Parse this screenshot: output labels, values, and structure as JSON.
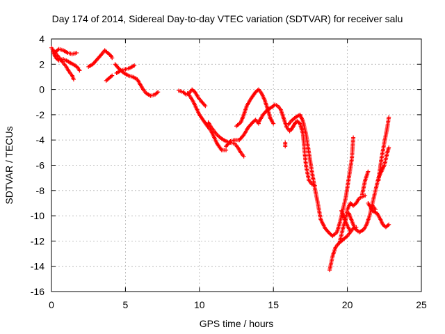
{
  "chart_data": {
    "type": "scatter",
    "title": "Day 174 of 2014, Sidereal Day-to-day VTEC variation (SDTVAR) for receiver salu",
    "xlabel": "GPS time / hours",
    "ylabel": "SDTVAR / TECUs",
    "xlim": [
      0,
      25
    ],
    "ylim": [
      -16,
      4
    ],
    "xticks": [
      0,
      5,
      10,
      15,
      20,
      25
    ],
    "yticks": [
      -16,
      -14,
      -12,
      -10,
      -8,
      -6,
      -4,
      -2,
      0,
      2,
      4
    ],
    "grid": true,
    "marker": "+",
    "color": "#ff0000",
    "series": [
      {
        "tracks": [
          [
            [
              0.0,
              3.3
            ],
            [
              0.2,
              3.0
            ],
            [
              0.4,
              2.7
            ],
            [
              0.6,
              2.4
            ],
            [
              0.8,
              2.1
            ],
            [
              1.0,
              1.8
            ],
            [
              1.2,
              1.4
            ],
            [
              1.4,
              1.1
            ],
            [
              1.5,
              0.8
            ]
          ],
          [
            [
              0.1,
              3.0
            ],
            [
              0.3,
              2.5
            ],
            [
              0.5,
              2.3
            ],
            [
              0.8,
              2.4
            ],
            [
              1.0,
              2.3
            ],
            [
              1.3,
              2.1
            ],
            [
              1.6,
              1.9
            ],
            [
              1.8,
              1.7
            ],
            [
              1.9,
              1.5
            ]
          ],
          [
            [
              0.3,
              3.0
            ],
            [
              0.5,
              3.2
            ],
            [
              0.8,
              3.1
            ],
            [
              1.1,
              2.9
            ],
            [
              1.4,
              2.8
            ],
            [
              1.7,
              2.9
            ]
          ],
          [
            [
              2.5,
              1.8
            ],
            [
              2.8,
              2.0
            ],
            [
              3.1,
              2.4
            ],
            [
              3.4,
              2.8
            ],
            [
              3.6,
              3.1
            ],
            [
              3.8,
              2.9
            ],
            [
              4.0,
              2.7
            ],
            [
              4.1,
              2.5
            ]
          ],
          [
            [
              3.7,
              0.7
            ],
            [
              3.9,
              0.9
            ],
            [
              4.1,
              1.1
            ]
          ],
          [
            [
              4.3,
              2.0
            ],
            [
              4.6,
              1.6
            ],
            [
              4.9,
              1.3
            ],
            [
              5.2,
              1.1
            ],
            [
              5.5,
              1.0
            ],
            [
              5.8,
              0.8
            ],
            [
              6.0,
              0.4
            ],
            [
              6.2,
              0.0
            ],
            [
              6.4,
              -0.3
            ],
            [
              6.7,
              -0.5
            ],
            [
              7.0,
              -0.4
            ],
            [
              7.2,
              -0.2
            ]
          ],
          [
            [
              4.4,
              1.3
            ],
            [
              4.7,
              1.5
            ],
            [
              5.0,
              1.6
            ],
            [
              5.3,
              1.7
            ],
            [
              5.6,
              1.9
            ]
          ],
          [
            [
              8.6,
              -0.1
            ],
            [
              8.9,
              -0.2
            ],
            [
              9.1,
              -0.4
            ],
            [
              9.3,
              -0.3
            ],
            [
              9.5,
              0.0
            ],
            [
              9.7,
              -0.2
            ],
            [
              9.9,
              -0.6
            ],
            [
              10.1,
              -0.9
            ],
            [
              10.4,
              -1.3
            ]
          ],
          [
            [
              9.2,
              -0.3
            ],
            [
              9.4,
              -0.6
            ],
            [
              9.6,
              -1.0
            ],
            [
              9.8,
              -1.5
            ],
            [
              10.0,
              -2.0
            ],
            [
              10.3,
              -2.5
            ],
            [
              10.6,
              -3.0
            ],
            [
              10.8,
              -3.3
            ],
            [
              11.0,
              -3.8
            ],
            [
              11.2,
              -4.3
            ],
            [
              11.5,
              -4.8
            ],
            [
              11.8,
              -4.8
            ]
          ],
          [
            [
              10.6,
              -2.6
            ],
            [
              10.8,
              -3.0
            ],
            [
              11.0,
              -3.3
            ],
            [
              11.2,
              -3.6
            ],
            [
              11.5,
              -3.9
            ],
            [
              11.8,
              -4.1
            ],
            [
              12.1,
              -4.2
            ],
            [
              12.4,
              -4.3
            ],
            [
              12.6,
              -4.6
            ],
            [
              12.8,
              -5.0
            ],
            [
              13.0,
              -5.3
            ]
          ],
          [
            [
              11.8,
              -4.5
            ],
            [
              12.1,
              -4.1
            ],
            [
              12.4,
              -4.0
            ],
            [
              12.7,
              -4.0
            ],
            [
              13.0,
              -3.6
            ],
            [
              13.3,
              -3.0
            ],
            [
              13.6,
              -2.6
            ],
            [
              13.8,
              -2.4
            ],
            [
              14.0,
              -2.7
            ]
          ],
          [
            [
              12.5,
              -2.9
            ],
            [
              12.8,
              -2.6
            ],
            [
              13.0,
              -2.0
            ],
            [
              13.2,
              -1.3
            ],
            [
              13.5,
              -0.7
            ],
            [
              13.8,
              -0.2
            ],
            [
              14.0,
              0.0
            ],
            [
              14.2,
              -0.3
            ],
            [
              14.4,
              -0.8
            ],
            [
              14.6,
              -1.5
            ],
            [
              14.8,
              -2.3
            ],
            [
              15.0,
              -2.7
            ]
          ],
          [
            [
              14.0,
              -2.6
            ],
            [
              14.3,
              -2.0
            ],
            [
              14.6,
              -1.6
            ],
            [
              14.9,
              -1.4
            ],
            [
              15.1,
              -1.2
            ],
            [
              15.3,
              -1.3
            ],
            [
              15.5,
              -1.6
            ],
            [
              15.7,
              -2.3
            ],
            [
              15.9,
              -3.0
            ],
            [
              16.1,
              -3.3
            ],
            [
              16.3,
              -3.0
            ],
            [
              16.5,
              -2.6
            ]
          ],
          [
            [
              15.8,
              -4.2
            ],
            [
              15.8,
              -4.5
            ]
          ],
          [
            [
              16.0,
              -2.8
            ],
            [
              16.2,
              -2.5
            ],
            [
              16.5,
              -2.2
            ],
            [
              16.8,
              -2.0
            ],
            [
              17.0,
              -2.5
            ],
            [
              17.2,
              -3.5
            ],
            [
              17.4,
              -5.0
            ],
            [
              17.6,
              -6.5
            ],
            [
              17.8,
              -7.8
            ],
            [
              18.0,
              -9.0
            ],
            [
              18.2,
              -10.3
            ],
            [
              18.5,
              -11.0
            ],
            [
              18.8,
              -11.4
            ],
            [
              19.0,
              -11.6
            ],
            [
              19.3,
              -11.3
            ],
            [
              19.5,
              -10.5
            ],
            [
              19.7,
              -9.5
            ],
            [
              19.9,
              -8.5
            ],
            [
              20.1,
              -7.0
            ],
            [
              20.3,
              -5.5
            ],
            [
              20.4,
              -3.8
            ]
          ],
          [
            [
              16.2,
              -3.2
            ],
            [
              16.4,
              -2.8
            ],
            [
              16.6,
              -2.5
            ],
            [
              16.8,
              -2.7
            ],
            [
              17.0,
              -3.5
            ],
            [
              17.1,
              -4.8
            ],
            [
              17.2,
              -6.0
            ],
            [
              17.4,
              -7.2
            ],
            [
              17.6,
              -7.5
            ],
            [
              17.8,
              -7.6
            ]
          ],
          [
            [
              18.8,
              -14.3
            ],
            [
              19.0,
              -13.2
            ],
            [
              19.2,
              -12.5
            ],
            [
              19.4,
              -12.2
            ],
            [
              19.6,
              -12.0
            ],
            [
              19.8,
              -11.8
            ],
            [
              20.0,
              -11.6
            ],
            [
              20.2,
              -11.3
            ],
            [
              20.4,
              -11.0
            ],
            [
              20.6,
              -10.9
            ]
          ],
          [
            [
              19.5,
              -12.0
            ],
            [
              19.7,
              -11.0
            ],
            [
              19.9,
              -10.2
            ],
            [
              20.0,
              -9.5
            ],
            [
              20.2,
              -9.0
            ],
            [
              20.4,
              -9.2
            ],
            [
              20.6,
              -9.0
            ],
            [
              20.8,
              -8.6
            ],
            [
              21.0,
              -8.5
            ],
            [
              21.2,
              -8.4
            ]
          ],
          [
            [
              19.6,
              -9.6
            ],
            [
              19.8,
              -10.2
            ],
            [
              20.0,
              -10.8
            ],
            [
              20.2,
              -11.2
            ]
          ],
          [
            [
              20.1,
              -9.8
            ],
            [
              20.3,
              -10.4
            ],
            [
              20.5,
              -11.0
            ],
            [
              20.8,
              -11.3
            ],
            [
              21.1,
              -11.1
            ],
            [
              21.3,
              -10.7
            ],
            [
              21.5,
              -10.0
            ],
            [
              21.7,
              -9.0
            ],
            [
              21.9,
              -8.0
            ],
            [
              22.1,
              -7.0
            ],
            [
              22.3,
              -6.5
            ],
            [
              22.5,
              -6.0
            ],
            [
              22.7,
              -5.0
            ],
            [
              22.8,
              -4.6
            ]
          ],
          [
            [
              21.0,
              -8.3
            ],
            [
              21.2,
              -7.2
            ],
            [
              21.4,
              -6.5
            ]
          ],
          [
            [
              21.4,
              -9.0
            ],
            [
              21.7,
              -9.6
            ],
            [
              22.0,
              -9.8
            ],
            [
              22.2,
              -10.2
            ],
            [
              22.4,
              -10.7
            ],
            [
              22.6,
              -10.9
            ],
            [
              22.8,
              -10.7
            ]
          ],
          [
            [
              22.1,
              -7.2
            ],
            [
              22.3,
              -5.5
            ],
            [
              22.5,
              -4.2
            ],
            [
              22.7,
              -3.0
            ],
            [
              22.8,
              -2.2
            ]
          ],
          [
            [
              21.7,
              -9.2
            ],
            [
              21.9,
              -9.5
            ]
          ]
        ]
      }
    ]
  }
}
